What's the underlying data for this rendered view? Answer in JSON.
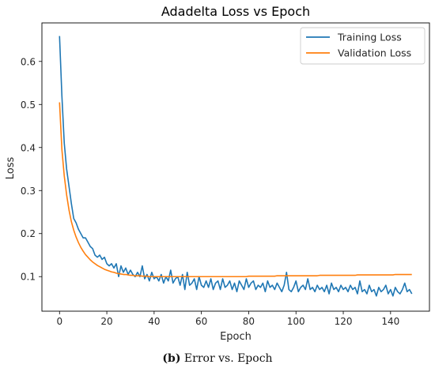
{
  "caption": {
    "label": "(b)",
    "text": " Error vs. Epoch"
  },
  "chart_data": {
    "type": "line",
    "title": "Adadelta Loss vs Epoch",
    "xlabel": "Epoch",
    "ylabel": "Loss",
    "xlim": [
      -7.45,
      156.45
    ],
    "ylim": [
      0.0197,
      0.6895
    ],
    "xticks": [
      0,
      20,
      40,
      60,
      80,
      100,
      120,
      140
    ],
    "yticks": [
      0.1,
      0.2,
      0.3,
      0.4,
      0.5,
      0.6
    ],
    "grid": false,
    "legend_position": "top-right",
    "series": [
      {
        "name": "Training Loss",
        "color": "#1f77b4",
        "x": [
          0,
          1,
          2,
          3,
          4,
          5,
          6,
          7,
          8,
          9,
          10,
          11,
          12,
          13,
          14,
          15,
          16,
          17,
          18,
          19,
          20,
          21,
          22,
          23,
          24,
          25,
          26,
          27,
          28,
          29,
          30,
          31,
          32,
          33,
          34,
          35,
          36,
          37,
          38,
          39,
          40,
          41,
          42,
          43,
          44,
          45,
          46,
          47,
          48,
          49,
          50,
          51,
          52,
          53,
          54,
          55,
          56,
          57,
          58,
          59,
          60,
          61,
          62,
          63,
          64,
          65,
          66,
          67,
          68,
          69,
          70,
          71,
          72,
          73,
          74,
          75,
          76,
          77,
          78,
          79,
          80,
          81,
          82,
          83,
          84,
          85,
          86,
          87,
          88,
          89,
          90,
          91,
          92,
          93,
          94,
          95,
          96,
          97,
          98,
          99,
          100,
          101,
          102,
          103,
          104,
          105,
          106,
          107,
          108,
          109,
          110,
          111,
          112,
          113,
          114,
          115,
          116,
          117,
          118,
          119,
          120,
          121,
          122,
          123,
          124,
          125,
          126,
          127,
          128,
          129,
          130,
          131,
          132,
          133,
          134,
          135,
          136,
          137,
          138,
          139,
          140,
          141,
          142,
          143,
          144,
          145,
          146,
          147,
          148,
          149
        ],
        "y": [
          0.659,
          0.52,
          0.41,
          0.35,
          0.31,
          0.27,
          0.235,
          0.225,
          0.21,
          0.2,
          0.19,
          0.19,
          0.18,
          0.17,
          0.165,
          0.15,
          0.145,
          0.15,
          0.14,
          0.145,
          0.13,
          0.125,
          0.13,
          0.12,
          0.13,
          0.1,
          0.125,
          0.11,
          0.12,
          0.105,
          0.115,
          0.105,
          0.1,
          0.11,
          0.1,
          0.125,
          0.095,
          0.105,
          0.09,
          0.11,
          0.095,
          0.1,
          0.09,
          0.105,
          0.085,
          0.1,
          0.09,
          0.115,
          0.085,
          0.095,
          0.1,
          0.08,
          0.105,
          0.07,
          0.11,
          0.08,
          0.085,
          0.095,
          0.07,
          0.1,
          0.08,
          0.075,
          0.09,
          0.075,
          0.095,
          0.07,
          0.085,
          0.09,
          0.07,
          0.095,
          0.075,
          0.08,
          0.09,
          0.07,
          0.085,
          0.065,
          0.09,
          0.08,
          0.07,
          0.095,
          0.075,
          0.085,
          0.09,
          0.07,
          0.08,
          0.075,
          0.085,
          0.065,
          0.09,
          0.075,
          0.08,
          0.07,
          0.085,
          0.075,
          0.065,
          0.08,
          0.11,
          0.07,
          0.065,
          0.075,
          0.09,
          0.065,
          0.075,
          0.08,
          0.07,
          0.095,
          0.07,
          0.075,
          0.065,
          0.08,
          0.07,
          0.075,
          0.065,
          0.08,
          0.06,
          0.085,
          0.07,
          0.075,
          0.065,
          0.08,
          0.07,
          0.075,
          0.065,
          0.08,
          0.07,
          0.075,
          0.06,
          0.09,
          0.065,
          0.07,
          0.06,
          0.08,
          0.065,
          0.07,
          0.055,
          0.075,
          0.065,
          0.07,
          0.08,
          0.06,
          0.07,
          0.055,
          0.075,
          0.065,
          0.06,
          0.07,
          0.085,
          0.065,
          0.07,
          0.06
        ]
      },
      {
        "name": "Validation Loss",
        "color": "#ff7f0e",
        "x": [
          0,
          1,
          2,
          3,
          4,
          5,
          6,
          7,
          8,
          9,
          10,
          11,
          12,
          13,
          14,
          15,
          16,
          17,
          18,
          19,
          20,
          21,
          22,
          23,
          24,
          25,
          26,
          27,
          28,
          29,
          30,
          31,
          32,
          33,
          34,
          35,
          36,
          37,
          38,
          39,
          40,
          41,
          42,
          43,
          44,
          45,
          46,
          47,
          48,
          49,
          50,
          51,
          52,
          53,
          54,
          55,
          56,
          57,
          58,
          59,
          60,
          61,
          62,
          63,
          64,
          65,
          66,
          67,
          68,
          69,
          70,
          71,
          72,
          73,
          74,
          75,
          76,
          77,
          78,
          79,
          80,
          81,
          82,
          83,
          84,
          85,
          86,
          87,
          88,
          89,
          90,
          91,
          92,
          93,
          94,
          95,
          96,
          97,
          98,
          99,
          100,
          101,
          102,
          103,
          104,
          105,
          106,
          107,
          108,
          109,
          110,
          111,
          112,
          113,
          114,
          115,
          116,
          117,
          118,
          119,
          120,
          121,
          122,
          123,
          124,
          125,
          126,
          127,
          128,
          129,
          130,
          131,
          132,
          133,
          134,
          135,
          136,
          137,
          138,
          139,
          140,
          141,
          142,
          143,
          144,
          145,
          146,
          147,
          148,
          149
        ],
        "y": [
          0.505,
          0.395,
          0.334,
          0.29,
          0.255,
          0.228,
          0.208,
          0.192,
          0.179,
          0.168,
          0.159,
          0.151,
          0.145,
          0.139,
          0.134,
          0.13,
          0.126,
          0.123,
          0.12,
          0.117,
          0.115,
          0.113,
          0.111,
          0.11,
          0.108,
          0.107,
          0.106,
          0.105,
          0.105,
          0.104,
          0.103,
          0.103,
          0.102,
          0.102,
          0.102,
          0.101,
          0.101,
          0.101,
          0.1,
          0.1,
          0.1,
          0.1,
          0.1,
          0.1,
          0.1,
          0.1,
          0.1,
          0.1,
          0.1,
          0.1,
          0.1,
          0.1,
          0.1,
          0.1,
          0.1,
          0.1,
          0.1,
          0.1,
          0.1,
          0.1,
          0.1,
          0.1,
          0.1,
          0.1,
          0.1,
          0.1,
          0.1,
          0.1,
          0.1,
          0.1,
          0.1,
          0.1,
          0.1,
          0.1,
          0.1,
          0.1,
          0.1,
          0.1,
          0.1,
          0.1,
          0.101,
          0.101,
          0.101,
          0.101,
          0.101,
          0.101,
          0.101,
          0.101,
          0.101,
          0.101,
          0.101,
          0.101,
          0.102,
          0.102,
          0.102,
          0.102,
          0.102,
          0.102,
          0.102,
          0.102,
          0.102,
          0.102,
          0.102,
          0.102,
          0.102,
          0.102,
          0.102,
          0.102,
          0.102,
          0.102,
          0.103,
          0.103,
          0.103,
          0.103,
          0.103,
          0.103,
          0.103,
          0.103,
          0.103,
          0.103,
          0.103,
          0.103,
          0.103,
          0.103,
          0.103,
          0.103,
          0.104,
          0.104,
          0.104,
          0.104,
          0.104,
          0.104,
          0.104,
          0.104,
          0.104,
          0.104,
          0.104,
          0.104,
          0.104,
          0.104,
          0.104,
          0.104,
          0.105,
          0.105,
          0.105,
          0.105,
          0.105,
          0.105,
          0.105,
          0.105
        ]
      }
    ]
  }
}
